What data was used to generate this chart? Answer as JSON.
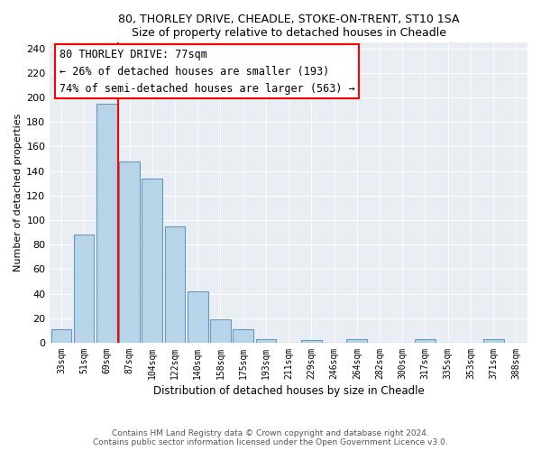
{
  "title1": "80, THORLEY DRIVE, CHEADLE, STOKE-ON-TRENT, ST10 1SA",
  "title2": "Size of property relative to detached houses in Cheadle",
  "xlabel": "Distribution of detached houses by size in Cheadle",
  "ylabel": "Number of detached properties",
  "bar_labels": [
    "33sqm",
    "51sqm",
    "69sqm",
    "87sqm",
    "104sqm",
    "122sqm",
    "140sqm",
    "158sqm",
    "175sqm",
    "193sqm",
    "211sqm",
    "229sqm",
    "246sqm",
    "264sqm",
    "282sqm",
    "300sqm",
    "317sqm",
    "335sqm",
    "353sqm",
    "371sqm",
    "388sqm"
  ],
  "bar_values": [
    11,
    88,
    195,
    148,
    134,
    95,
    42,
    19,
    11,
    3,
    0,
    2,
    0,
    3,
    0,
    0,
    3,
    0,
    0,
    3,
    0
  ],
  "bar_color": "#b8d4e8",
  "bar_edge_color": "#6699bb",
  "annotation_title": "80 THORLEY DRIVE: 77sqm",
  "annotation_line1": "← 26% of detached houses are smaller (193)",
  "annotation_line2": "74% of semi-detached houses are larger (563) →",
  "ylim": [
    0,
    245
  ],
  "yticks": [
    0,
    20,
    40,
    60,
    80,
    100,
    120,
    140,
    160,
    180,
    200,
    220,
    240
  ],
  "footer1": "Contains HM Land Registry data © Crown copyright and database right 2024.",
  "footer2": "Contains public sector information licensed under the Open Government Licence v3.0.",
  "background_color": "#e8eef4",
  "grid_color": "#c8d8e8"
}
